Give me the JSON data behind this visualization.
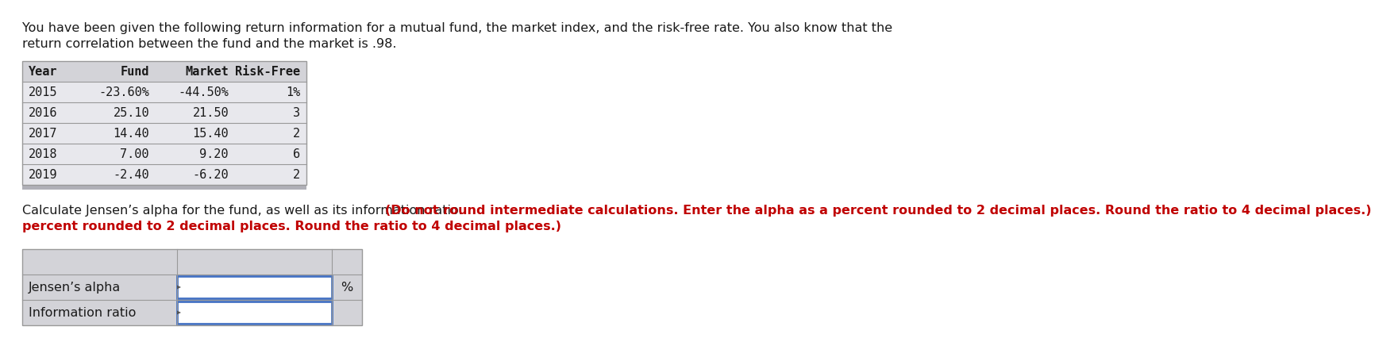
{
  "intro_line1": "You have been given the following return information for a mutual fund, the market index, and the risk-free rate. You also know that the",
  "intro_line2": "return correlation between the fund and the market is .98.",
  "table_headers": [
    "Year",
    "Fund",
    "Market",
    "Risk-Free"
  ],
  "table_col_aligns": [
    "left",
    "right",
    "right",
    "right"
  ],
  "table_data": [
    [
      "2015",
      "-23.60%",
      "-44.50%",
      "1%"
    ],
    [
      "2016",
      "25.10",
      "21.50",
      "3"
    ],
    [
      "2017",
      "14.40",
      "15.40",
      "2"
    ],
    [
      "2018",
      "7.00",
      "9.20",
      "6"
    ],
    [
      "2019",
      "-2.40",
      "-6.20",
      "2"
    ]
  ],
  "q_normal": "Calculate Jensen’s alpha for the fund, as well as its information ratio.",
  "q_bold_red": " (Do not round intermediate calculations. Enter the alpha as a percent rounded to 2 decimal places. Round the ratio to 4 decimal places.)",
  "q_line2_red": "percent rounded to 2 decimal places. Round the ratio to 4 decimal places.)",
  "answer_labels": [
    "Jensen’s alpha",
    "Information ratio"
  ],
  "pct_label": "%",
  "bg_color": "#ffffff",
  "table_header_bg": "#d3d3d8",
  "table_data_bg_odd": "#e8e8ed",
  "table_data_bg_even": "#e8e8ed",
  "table_border_color": "#999999",
  "table_bottom_bar": "#b0b0b8",
  "ans_header_bg": "#d3d3d8",
  "ans_data_bg": "#d3d3d8",
  "ans_input_bg": "#ffffff",
  "ans_input_border": "#4472c4",
  "ans_border_color": "#999999",
  "text_color": "#1a1a1a",
  "red_color": "#c00000",
  "mono_font": "DejaVu Sans Mono",
  "sans_font": "DejaVu Sans",
  "intro_fontsize": 11.5,
  "table_fontsize": 11.0,
  "q_fontsize": 11.5,
  "ans_fontsize": 11.5
}
